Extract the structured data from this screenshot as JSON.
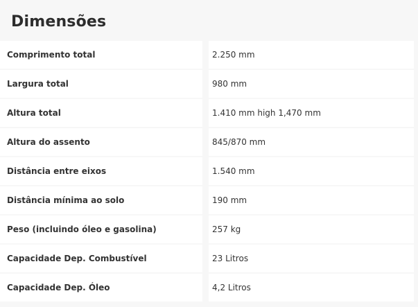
{
  "title": "Dimensões",
  "rows": [
    {
      "label": "Comprimento total",
      "value": "2.250 mm"
    },
    {
      "label": "Largura total",
      "value": "980 mm"
    },
    {
      "label": "Altura total",
      "value": "1.410 mm high 1,470 mm"
    },
    {
      "label": "Altura do assento",
      "value": "845/870 mm"
    },
    {
      "label": "Distância entre eixos",
      "value": "1.540 mm"
    },
    {
      "label": "Distância mínima ao solo",
      "value": "190 mm"
    },
    {
      "label": "Peso (incluindo óleo e gasolina)",
      "value": "257 kg"
    },
    {
      "label": "Capacidade Dep. Combustível",
      "value": "23 Litros"
    },
    {
      "label": "Capacidade Dep. Óleo",
      "value": "4,2 Litros"
    }
  ]
}
